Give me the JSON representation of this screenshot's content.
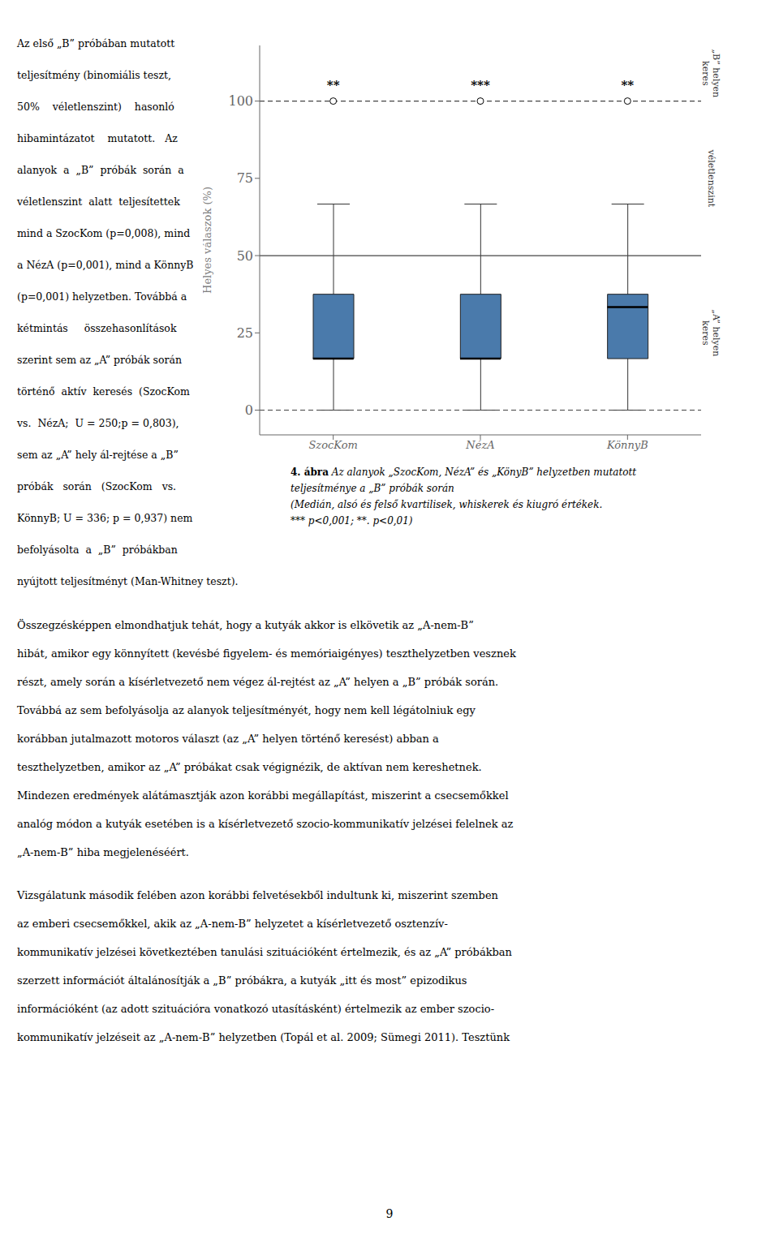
{
  "chart_data": {
    "type": "box",
    "categories": [
      "SzocKom",
      "NézA",
      "KönnyB"
    ],
    "boxes": [
      {
        "q1": 16.67,
        "median": 16.67,
        "q3": 37.5,
        "whisker_low": 0.0,
        "whisker_high": 66.67
      },
      {
        "q1": 16.67,
        "median": 16.67,
        "q3": 37.5,
        "whisker_low": 0.0,
        "whisker_high": 66.67
      },
      {
        "q1": 16.67,
        "median": 33.33,
        "q3": 37.5,
        "whisker_low": 0.0,
        "whisker_high": 66.67
      }
    ],
    "color": "#4a7aab",
    "y_label": "Helyes válaszok (%)",
    "ylim": [
      -8,
      118
    ],
    "yticks": [
      0,
      25,
      50,
      75,
      100
    ],
    "grid": false,
    "reference_lines": [
      {
        "value": 0,
        "line_style": "dashed"
      },
      {
        "value": 50,
        "line_style": "solid"
      },
      {
        "value": 100,
        "line_style": "dashed"
      }
    ],
    "markers": {
      "values": [
        100,
        100,
        100
      ],
      "marker": "circle",
      "labels": [
        "**",
        "***",
        "**"
      ]
    },
    "side_labels": [
      "„B” helyen\nkeres",
      "véletlenszint",
      "„A” helyen\nkeres"
    ],
    "caption_label": "4. ábra",
    "caption": [
      "Az alanyok „SzocKom, NézA” és „KönyB” helyzetben mutatott",
      "teljesítménye a „B” próbák során",
      "(Medián, alsó és felső kvartilisek, whiskerek és kiugró értékek.",
      "*** p<0,001; **. p<0,01)"
    ]
  },
  "page_text": {
    "left_column": [
      "Az első „B” próbában mutatott",
      "teljesítmény (binomiális teszt,",
      "50%    véletlenszint)    hasonló",
      "hibamintázatot    mutatott.   Az",
      "alanyok  a  „B”  próbák  során  a",
      "véletlenszint  alatt  teljesítettek",
      "mind a SzocKom (p=0,008), mind",
      "a NézA (p=0,001), mind a KönnyB",
      "(p=0,001) helyzetben. Továbbá a",
      "kétmintás     összehasonlítások",
      "szerint sem az „A” próbák során",
      "történő  aktív  keresés  (SzocKom",
      "vs.  NézA;  U = 250;p = 0,803),",
      "sem az „A” hely ál-rejtése a „B”",
      "próbák   során   (SzocKom   vs.",
      "KönnyB; U = 336; p = 0,937) nem",
      "befolyásolta  a  „B”  próbákban",
      "nyújtott teljesítményt (Man-Whitney teszt)."
    ],
    "paragraphs": [
      [
        "Összegzésképpen elmondhatjuk tehát, hogy a kutyák akkor is elkövetik az „A-nem-B”",
        "hibát, amikor egy könnyített (kevésbé figyelem- és memóriaigényes) teszthelyzetben vesznek",
        "részt, amely során a kísérletvezető nem végez ál-rejtést az „A” helyen a „B” próbák során.",
        "Továbbá az sem befolyásolja az alanyok teljesítményét, hogy nem kell légátolniuk egy",
        "korábban jutalmazott motoros választ (az „A” helyen történő keresést) abban a",
        "teszthelyzetben, amikor az „A” próbákat csak végignézik, de aktívan nem kereshetnek.",
        "Mindezen eredmények alátámasztják azon korábbi megállapítást, miszerint a csecsemőkkel",
        "analóg módon a kutyák esetében is a kísérletvezető szocio-kommunikatív jelzései felelnek az",
        "„A-nem-B” hiba megjelenéséért."
      ],
      [
        "Vizsgálatunk második felében azon korábbi felvetésekből indultunk ki, miszerint szemben",
        "az emberi csecsemőkkel, akik az „A-nem-B” helyzetet a kísérletvezető osztenzív-",
        "kommunikatív jelzései következtében tanulási szituációként értelmezik, és az „A” próbákban",
        "szerzett információt általánosítják a „B” próbákra, a kutyák „itt és most” epizodikus",
        "információként (az adott szituációra vonatkozó utasításként) értelmezik az ember szocio-",
        "kommunikatív jelzéseit az „A-nem-B” helyzetben (Topál et al. 2009; Sümegi 2011). Tesztünk"
      ]
    ],
    "page_number": "9"
  }
}
